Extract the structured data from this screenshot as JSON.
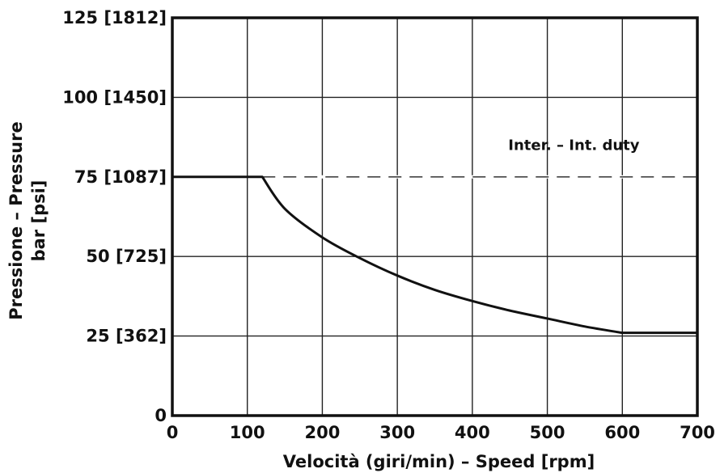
{
  "chart_data": {
    "type": "line",
    "title": "",
    "xlabel": "Velocità (giri/min) – Speed [rpm]",
    "ylabel_line1": "Pressione – Pressure",
    "ylabel_line2": "bar [psi]",
    "xlim": [
      0,
      700
    ],
    "ylim": [
      0,
      125
    ],
    "grid": true,
    "x_ticks": [
      0,
      100,
      200,
      300,
      400,
      500,
      600,
      700
    ],
    "x_tick_labels": [
      "0",
      "100",
      "200",
      "300",
      "400",
      "500",
      "600",
      "700"
    ],
    "y_ticks": [
      0,
      25,
      50,
      75,
      100,
      125
    ],
    "y_tick_labels": [
      "0",
      "25 [362]",
      "50 [725]",
      "75 [1087]",
      "100 [1450]",
      "125 [1812]"
    ],
    "series": [
      {
        "style": "solid",
        "x": [
          0,
          120,
          150,
          200,
          250,
          300,
          350,
          400,
          450,
          500,
          550,
          600,
          700
        ],
        "y": [
          75,
          75,
          65,
          56,
          49.5,
          44,
          39.5,
          36,
          33,
          30.5,
          28,
          26,
          26
        ]
      }
    ],
    "reference_lines": [
      {
        "style": "dashed",
        "y": 75,
        "x_from": 120,
        "x_to": 700
      }
    ],
    "annotations": [
      {
        "text": "Inter. – Int. duty",
        "x": 530,
        "y": 85
      }
    ]
  }
}
